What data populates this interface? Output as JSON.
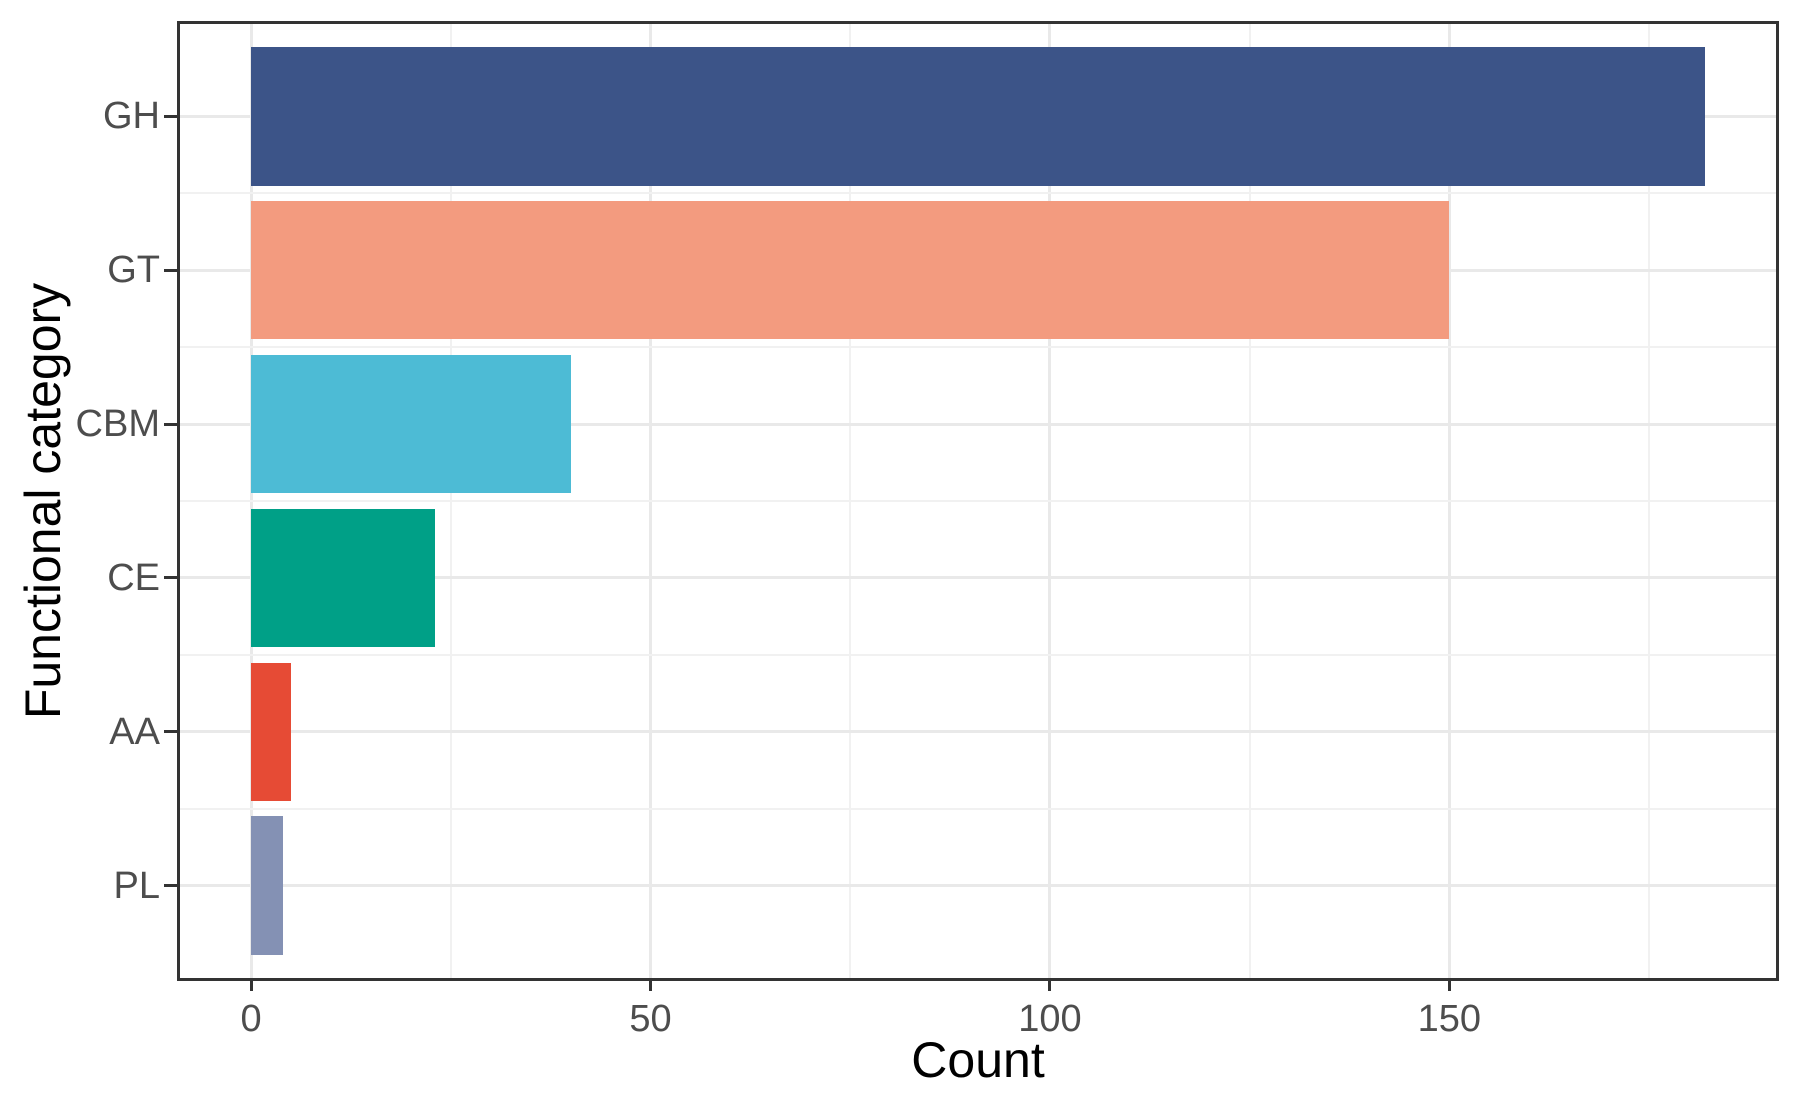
{
  "chart_data": {
    "type": "bar",
    "orientation": "horizontal",
    "title": "",
    "xlabel": "Count",
    "ylabel": "Functional category",
    "categories": [
      "GH",
      "GT",
      "CBM",
      "CE",
      "AA",
      "PL"
    ],
    "values": [
      182,
      150,
      40,
      23,
      5,
      4
    ],
    "bar_colors": [
      "#3C5488",
      "#F39B7F",
      "#4DBBD5",
      "#00A087",
      "#E64B35",
      "#8491B4"
    ],
    "x_ticks": [
      0,
      50,
      100,
      150
    ],
    "x_tick_labels": [
      "0",
      "50",
      "100",
      "150"
    ],
    "x_minor_ticks": [
      25,
      75,
      125,
      175
    ],
    "xlim": [
      -8.9,
      190.9
    ],
    "grid": "major and minor, light gray on white",
    "legend": false,
    "theme": {
      "panel_border_color": "#333333",
      "major_grid_color": "#e9e9e9",
      "minor_grid_color": "#f1f1f1",
      "tick_mark_color": "#333333",
      "tick_label_color": "#4d4d4d",
      "axis_title_color": "#000000"
    }
  }
}
